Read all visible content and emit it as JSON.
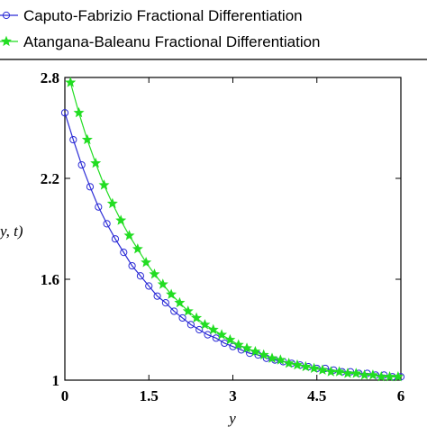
{
  "chart_data": {
    "type": "line",
    "xlabel": "y",
    "ylabel": "y, t)",
    "xlim": [
      0,
      6
    ],
    "ylim": [
      1,
      2.8
    ],
    "xticks": [
      "0",
      "1.5",
      "3",
      "4.5",
      "6"
    ],
    "yticks": [
      "1",
      "1.6",
      "2.2",
      "2.8"
    ],
    "grid": false,
    "legend_position": "top",
    "series": [
      {
        "name": "Caputo-Fabrizio Fractional Differentiation",
        "color": "#2b2bd6",
        "marker": "circle",
        "x": [
          0,
          0.15,
          0.3,
          0.45,
          0.6,
          0.75,
          0.9,
          1.05,
          1.2,
          1.35,
          1.5,
          1.65,
          1.8,
          1.95,
          2.1,
          2.25,
          2.4,
          2.55,
          2.7,
          2.85,
          3.0,
          3.15,
          3.3,
          3.45,
          3.6,
          3.75,
          3.9,
          4.05,
          4.2,
          4.35,
          4.5,
          4.65,
          4.8,
          4.95,
          5.1,
          5.25,
          5.4,
          5.55,
          5.7,
          5.85,
          6.0
        ],
        "values": [
          2.59,
          2.43,
          2.28,
          2.15,
          2.03,
          1.93,
          1.84,
          1.76,
          1.68,
          1.62,
          1.56,
          1.5,
          1.46,
          1.41,
          1.37,
          1.33,
          1.3,
          1.27,
          1.25,
          1.22,
          1.2,
          1.18,
          1.16,
          1.15,
          1.13,
          1.12,
          1.11,
          1.1,
          1.09,
          1.08,
          1.07,
          1.07,
          1.06,
          1.05,
          1.05,
          1.04,
          1.04,
          1.03,
          1.03,
          1.02,
          1.02
        ]
      },
      {
        "name": "Atangana-Baleanu Fractional Differentiation",
        "color": "#22dd22",
        "marker": "star",
        "x": [
          0.1,
          0.25,
          0.4,
          0.55,
          0.7,
          0.85,
          1.0,
          1.15,
          1.3,
          1.45,
          1.6,
          1.75,
          1.9,
          2.05,
          2.2,
          2.35,
          2.5,
          2.65,
          2.8,
          2.95,
          3.1,
          3.25,
          3.4,
          3.55,
          3.7,
          3.85,
          4.0,
          4.15,
          4.3,
          4.45,
          4.6,
          4.75,
          4.9,
          5.05,
          5.2,
          5.35,
          5.5,
          5.65,
          5.8,
          5.95
        ],
        "values": [
          2.77,
          2.59,
          2.43,
          2.29,
          2.16,
          2.05,
          1.95,
          1.86,
          1.78,
          1.7,
          1.63,
          1.57,
          1.51,
          1.46,
          1.41,
          1.37,
          1.33,
          1.3,
          1.27,
          1.24,
          1.21,
          1.19,
          1.17,
          1.15,
          1.13,
          1.12,
          1.1,
          1.09,
          1.08,
          1.07,
          1.06,
          1.05,
          1.05,
          1.04,
          1.04,
          1.03,
          1.03,
          1.02,
          1.02,
          1.02
        ]
      }
    ]
  }
}
